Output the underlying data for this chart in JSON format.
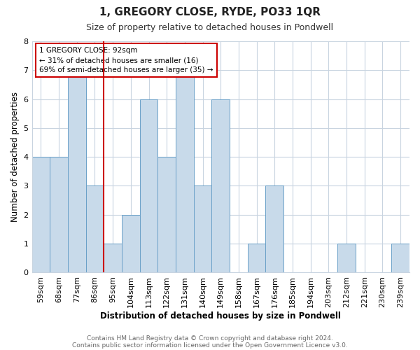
{
  "title": "1, GREGORY CLOSE, RYDE, PO33 1QR",
  "subtitle": "Size of property relative to detached houses in Pondwell",
  "xlabel": "Distribution of detached houses by size in Pondwell",
  "ylabel": "Number of detached properties",
  "bin_labels": [
    "59sqm",
    "68sqm",
    "77sqm",
    "86sqm",
    "95sqm",
    "104sqm",
    "113sqm",
    "122sqm",
    "131sqm",
    "140sqm",
    "149sqm",
    "158sqm",
    "167sqm",
    "176sqm",
    "185sqm",
    "194sqm",
    "203sqm",
    "212sqm",
    "221sqm",
    "230sqm",
    "239sqm"
  ],
  "bar_values": [
    4,
    4,
    7,
    3,
    1,
    2,
    6,
    4,
    7,
    3,
    6,
    0,
    1,
    3,
    0,
    0,
    0,
    1,
    0,
    0,
    1
  ],
  "bar_color": "#c8daea",
  "bar_edgecolor": "#6aa0c8",
  "highlight_bin_index": 4,
  "highlight_color": "#cc0000",
  "ylim": [
    0,
    8
  ],
  "yticks": [
    0,
    1,
    2,
    3,
    4,
    5,
    6,
    7,
    8
  ],
  "grid_color": "#c8d4e0",
  "background_color": "#ffffff",
  "annotation_text": "1 GREGORY CLOSE: 92sqm\n← 31% of detached houses are smaller (16)\n69% of semi-detached houses are larger (35) →",
  "annotation_box_edgecolor": "#cc0000",
  "footnote1": "Contains HM Land Registry data © Crown copyright and database right 2024.",
  "footnote2": "Contains public sector information licensed under the Open Government Licence v3.0."
}
